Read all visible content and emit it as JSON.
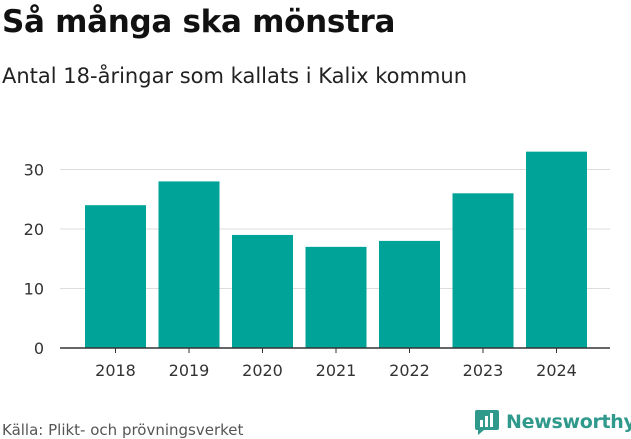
{
  "header": {
    "title": "Så många ska mönstra",
    "subtitle": "Antal 18-åringar som kallats i Kalix kommun"
  },
  "footer": {
    "source": "Källa: Plikt- och prövningsverket",
    "logo_text": "Newsworthy",
    "logo_icon": "newsworthy-logo-icon"
  },
  "colors": {
    "bar": "#00a398",
    "grid": "#dddddd",
    "axis": "#333333",
    "brand": "#2f9a8c"
  },
  "chart_data": {
    "type": "bar",
    "categories": [
      "2018",
      "2019",
      "2020",
      "2021",
      "2022",
      "2023",
      "2024"
    ],
    "values": [
      24,
      28,
      19,
      17,
      18,
      26,
      33
    ],
    "yticks": [
      0,
      10,
      20,
      30
    ],
    "ylim": [
      0,
      35
    ],
    "grid": true,
    "legend": "none"
  }
}
